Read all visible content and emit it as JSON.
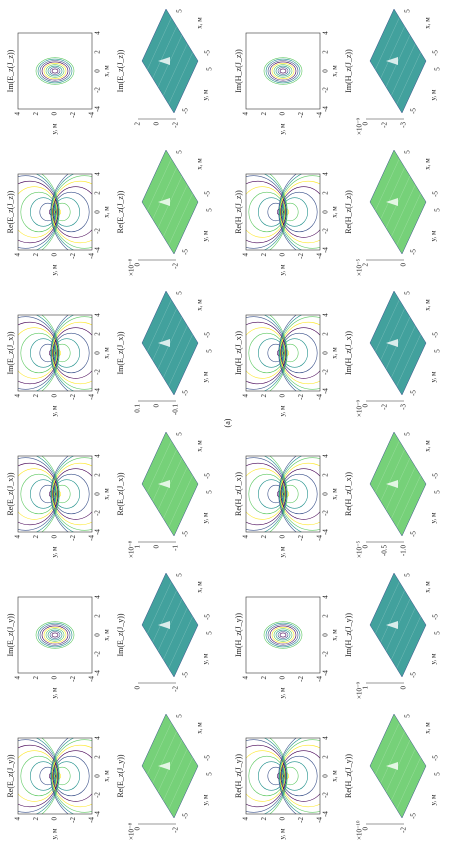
{
  "label": "(a)",
  "columns": [
    {
      "kind": "contour",
      "panels": [
        {
          "title": "Im(E_z(J_z))"
        },
        {
          "title": "Re(E_z(J_z))"
        },
        {
          "title": "Im(E_z(J_x))"
        },
        {
          "title": "Re(E_z(J_x))"
        },
        {
          "title": "Im(E_z(J_y))"
        },
        {
          "title": "Re(E_z(J_y))"
        }
      ]
    },
    {
      "kind": "surface",
      "panels": [
        {
          "title": "Im(E_z(J_z))",
          "zticks": [
            "-2",
            "0",
            "2"
          ],
          "zscale": ""
        },
        {
          "title": "Re(E_z(J_z))",
          "zticks": [
            "-2",
            "0"
          ],
          "zscale": "×10⁻⁸"
        },
        {
          "title": "Im(E_z(J_x))",
          "zticks": [
            "-0.1",
            "0",
            "0.1"
          ],
          "zscale": ""
        },
        {
          "title": "Re(E_z(J_x))",
          "zticks": [
            "-1",
            "0",
            "1"
          ],
          "zscale": "×10⁻⁸"
        },
        {
          "title": "Im(E_z(J_y))",
          "zticks": [
            "-2",
            "0"
          ],
          "zscale": ""
        },
        {
          "title": "Re(E_z(J_y))",
          "zticks": [
            "-2",
            "0"
          ],
          "zscale": "×10⁻⁸"
        }
      ]
    },
    {
      "kind": "contour",
      "panels": [
        {
          "title": "Im(H_z(J_z))"
        },
        {
          "title": "Re(H_z(J_z))"
        },
        {
          "title": "Im(H_z(J_x))"
        },
        {
          "title": "Re(H_z(J_x))"
        },
        {
          "title": "Im(H_z(J_y))"
        },
        {
          "title": "Re(H_z(J_y))"
        }
      ]
    },
    {
      "kind": "surface",
      "panels": [
        {
          "title": "Im(H_z(J_z))",
          "zticks": [
            "-3",
            "-2",
            "0"
          ],
          "zscale": "×10⁻⁹"
        },
        {
          "title": "Re(H_z(J_z))",
          "zticks": [
            "0",
            "2"
          ],
          "zscale": "×10⁻⁵"
        },
        {
          "title": "Im(H_z(J_x))",
          "zticks": [
            "-3",
            "-2",
            "0"
          ],
          "zscale": "×10⁻⁹"
        },
        {
          "title": "Re(H_z(J_x))",
          "zticks": [
            "-1.0",
            "-0.5",
            "0"
          ],
          "zscale": "×10⁻⁵"
        },
        {
          "title": "Im(H_z(J_y))",
          "zticks": [
            "0",
            "1"
          ],
          "zscale": "×10⁻⁹"
        },
        {
          "title": "Re(H_z(J_y))",
          "zticks": [
            "-2",
            "0"
          ],
          "zscale": "×10⁻¹⁰"
        }
      ]
    }
  ],
  "contour_axes": {
    "xlabel": "x, м",
    "ylabel": "y, м",
    "xticks": [
      "-4",
      "-2",
      "0",
      "2",
      "4"
    ],
    "yticks": [
      "-4",
      "-2",
      "0",
      "2",
      "4"
    ]
  },
  "surface_axes": {
    "xlabel": "x, м",
    "ylabel": "y, м",
    "xticks": [
      "-5",
      "5"
    ],
    "yticks": [
      "-5",
      "5"
    ]
  }
}
